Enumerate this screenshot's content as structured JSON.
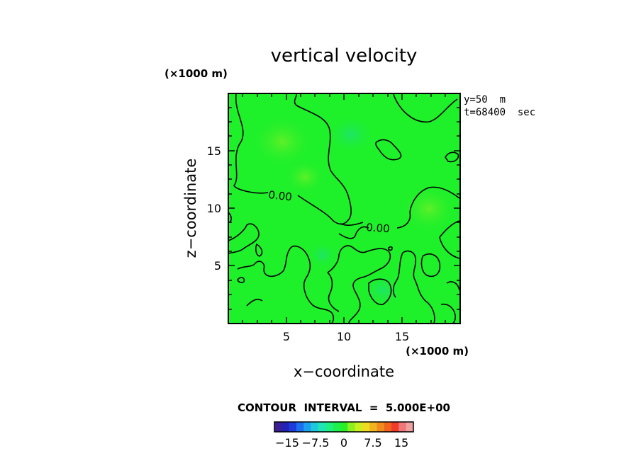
{
  "chart_data": {
    "type": "heatmap",
    "title": "vertical velocity",
    "xlabel": "x−coordinate",
    "ylabel": "z−coordinate",
    "x_unit": "(×1000 m)",
    "y_unit": "(×1000 m)",
    "xlim": [
      0,
      20
    ],
    "ylim": [
      0,
      20
    ],
    "x_ticks": [
      5,
      10,
      15
    ],
    "y_ticks": [
      5,
      10,
      15
    ],
    "annotations": [
      "y=50  m",
      "t=68400  sec"
    ],
    "contour_labels": [
      {
        "text": "0.00",
        "x": 4.8,
        "z": 11.3
      },
      {
        "text": "0.00",
        "x": 13.2,
        "z": 8.2
      }
    ],
    "contour_interval_text": "CONTOUR  INTERVAL  =  5.000E+00",
    "colorbar": {
      "tick_labels": [
        "−15",
        "−7.5",
        "0",
        "7.5",
        "15"
      ],
      "colors": [
        "#3c1e96",
        "#2222b4",
        "#1e3cdc",
        "#1e6ef0",
        "#1ea0f0",
        "#1ec8dc",
        "#1ee6b4",
        "#1ef082",
        "#1ef050",
        "#28f028",
        "#8cf01e",
        "#c8f01e",
        "#f0dc1e",
        "#f0b41e",
        "#f08c1e",
        "#f0641e",
        "#f03c28",
        "#f07878",
        "#f0a0a0"
      ]
    }
  }
}
